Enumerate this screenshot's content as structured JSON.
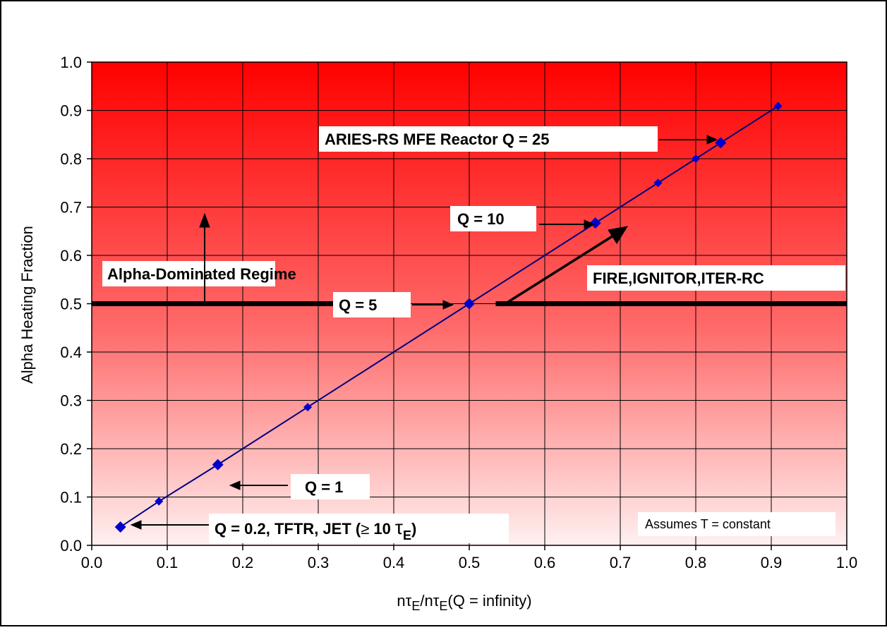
{
  "chart_data": {
    "type": "scatter",
    "title": "",
    "xlabel": "nτE/nτE(Q = infinity)",
    "xlabel_parts": {
      "n1": "n",
      "tau1": "τ",
      "sub1": "E",
      "slash": "/n",
      "tau2": "τ",
      "sub2": "E",
      "rest": "(Q = infinity)"
    },
    "ylabel": "Alpha Heating Fraction",
    "xlim": [
      0.0,
      1.0
    ],
    "ylim": [
      0.0,
      1.0
    ],
    "xticks": [
      "0.0",
      "0.1",
      "0.2",
      "0.3",
      "0.4",
      "0.5",
      "0.6",
      "0.7",
      "0.8",
      "0.9",
      "1.0"
    ],
    "yticks": [
      "0.0",
      "0.1",
      "0.2",
      "0.3",
      "0.4",
      "0.5",
      "0.6",
      "0.7",
      "0.8",
      "0.9",
      "1.0"
    ],
    "grid": true,
    "colors": {
      "series": "#0000cc",
      "line": "#000080",
      "gradient_top": "#ff0000",
      "gradient_bottom": "#fff0f0"
    },
    "series": [
      {
        "x": [
          0.038,
          0.089,
          0.167,
          0.286,
          0.5,
          0.667,
          0.75,
          0.8,
          0.833,
          0.909
        ],
        "y": [
          0.038,
          0.091,
          0.167,
          0.286,
          0.5,
          0.667,
          0.75,
          0.8,
          0.833,
          0.909
        ]
      }
    ],
    "threshold": {
      "y": 0.5,
      "gap": [
        0.325,
        0.535
      ]
    },
    "annotations": {
      "aries": "ARIES-RS MFE Reactor  Q = 25",
      "q10": "Q = 10",
      "alpha_regime": "Alpha-Dominated Regime",
      "fire": "FIRE,IGNITOR,ITER-RC",
      "q5": "Q = 5",
      "q1": "Q = 1",
      "q02_main": "Q = 0.2, TFTR, JET (",
      "q02_ge": "≥",
      "q02_ten": " 10",
      "q02_tau": "τ",
      "q02_sub": "E",
      "q02_close": ")",
      "assumes": "Assumes T = constant"
    }
  }
}
